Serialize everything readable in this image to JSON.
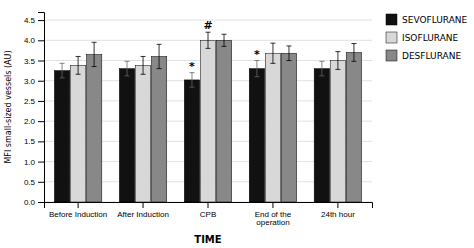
{
  "chart_data": {
    "type": "bar",
    "categories": [
      "Before Induction",
      "After Induction",
      "CPB",
      "End of the\noperation",
      "24th hour"
    ],
    "series": [
      {
        "name": "SEVOFLURANE",
        "color": "#111111",
        "values": [
          3.25,
          3.3,
          3.02,
          3.3,
          3.3
        ],
        "errors": [
          0.18,
          0.18,
          0.18,
          0.2,
          0.18
        ]
      },
      {
        "name": "ISOFLURANE",
        "color": "#d8d8d8",
        "values": [
          3.38,
          3.38,
          4.0,
          3.68,
          3.5
        ],
        "errors": [
          0.22,
          0.22,
          0.2,
          0.25,
          0.22
        ]
      },
      {
        "name": "DESFLURANE",
        "color": "#888888",
        "values": [
          3.65,
          3.6,
          4.0,
          3.68,
          3.7
        ],
        "errors": [
          0.3,
          0.3,
          0.15,
          0.18,
          0.22
        ]
      }
    ],
    "x_label": "TIME",
    "y_label": "MFI small-sized vessels (AU)",
    "ylim": [
      0.0,
      4.7
    ],
    "yticks": [
      {
        "value": 0.0,
        "label": "0.0"
      },
      0.5,
      {
        "value": 1.0,
        "label": "1.0"
      },
      1.5,
      {
        "value": 2.0,
        "label": "2.0"
      },
      2.5,
      {
        "value": 3.0,
        "label": "3.0"
      },
      3.5,
      {
        "value": 4.0,
        "label": "4.0"
      },
      4.5
    ],
    "annotations": [
      {
        "text": "*",
        "series": "SEVOFLURANE",
        "category": "CPB"
      },
      {
        "text": "#",
        "series": "ISOFLURANE",
        "category": "CPB"
      },
      {
        "text": "*",
        "series": "SEVOFLURANE",
        "category": "End of the\noperation"
      }
    ],
    "grid": true,
    "legend": "right"
  }
}
